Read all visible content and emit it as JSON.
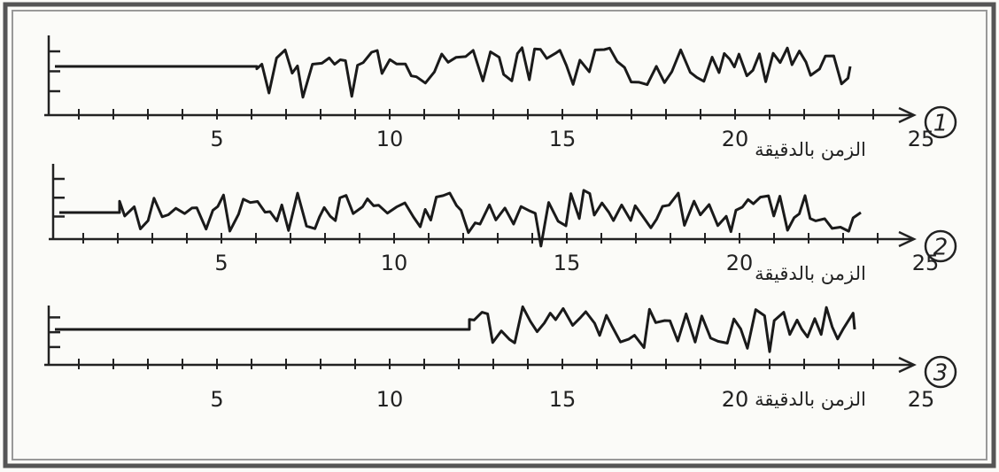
{
  "panels": [
    {
      "number": "1",
      "ticks": [
        5,
        10,
        15,
        20,
        25
      ],
      "axis_label": "الزمن بالدقيقة"
    },
    {
      "number": "2",
      "ticks": [
        5,
        10,
        15,
        20,
        25
      ],
      "axis_label": "الزمن بالدقيقة"
    },
    {
      "number": "3",
      "ticks": [
        5,
        10,
        15,
        20,
        25
      ],
      "axis_label": "الزمن بالدقيقة"
    }
  ]
}
